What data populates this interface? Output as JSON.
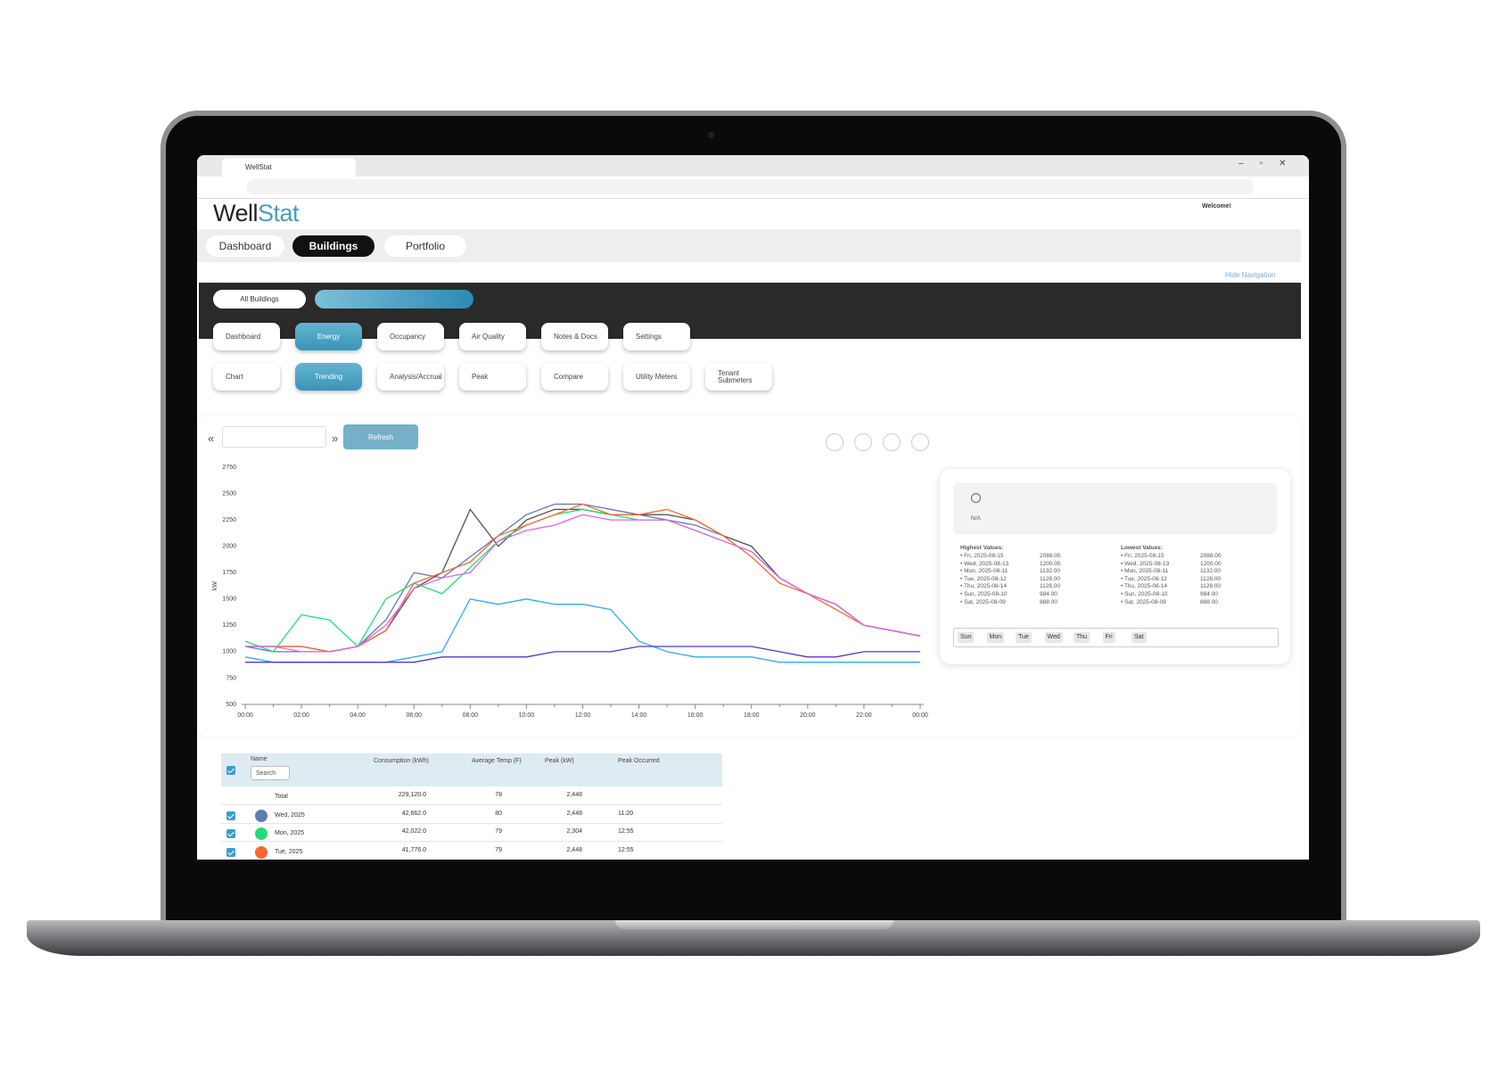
{
  "browser": {
    "tab_title": "WellStat"
  },
  "header": {
    "logo_well": "Well",
    "logo_stat": "Stat",
    "welcome": "Welcome!",
    "nav": [
      "Dashboard",
      "Buildings",
      "Portfolio"
    ],
    "hide_navigation": "Hide Navigation"
  },
  "building_bar": {
    "all_buildings": "All Buildings"
  },
  "menu": {
    "row1": [
      "Dashboard",
      "Energy",
      "Occupancy",
      "Air Quality",
      "Notes & Docs",
      "Settings"
    ],
    "row2": [
      "Chart",
      "Trending",
      "Analysis/Accrual",
      "Peak",
      "Compare",
      "Utility Meters",
      "Tenant Submeters"
    ]
  },
  "controls": {
    "prev": "«",
    "next": "»",
    "refresh": "Refresh"
  },
  "chart_data": {
    "type": "line",
    "y_label": "kW",
    "categories": [
      "00:00",
      null,
      "02:00",
      null,
      "04:00",
      null,
      "06:00",
      null,
      "08:00",
      null,
      "10:00",
      null,
      "12:00",
      null,
      "14:00",
      null,
      "16:00",
      null,
      "18:00",
      null,
      "20:00",
      null,
      "22:00",
      null,
      "00:00"
    ],
    "ylim": [
      500,
      2750
    ],
    "yticks": [
      500,
      750,
      1000,
      1250,
      1500,
      1750,
      2000,
      2250,
      2500,
      2750
    ],
    "grid": false,
    "series": [
      {
        "color": "#5f7bb5",
        "values": [
          1050,
          1000,
          1000,
          1000,
          1050,
          1300,
          1750,
          1700,
          1900,
          2100,
          2300,
          2400,
          2400,
          2350,
          2300,
          2250,
          2200,
          2100,
          2000,
          1700,
          1550,
          1450,
          1250,
          1200,
          1150
        ]
      },
      {
        "color": "#555555",
        "values": [
          1050,
          1050,
          1050,
          1000,
          1050,
          1200,
          1600,
          1750,
          2350,
          2000,
          2250,
          2350,
          2350,
          2300,
          2300,
          2300,
          2250,
          2100,
          2000,
          1700,
          1550,
          1450,
          1250,
          1200,
          1150
        ]
      },
      {
        "color": "#22dd77",
        "values": [
          1100,
          1000,
          1350,
          1300,
          1050,
          1500,
          1650,
          1550,
          1800,
          2050,
          2200,
          2300,
          2350,
          2300,
          2250,
          2250,
          2150,
          2050,
          1950,
          1700,
          1550,
          1450,
          1250,
          1200,
          1150
        ]
      },
      {
        "color": "#ff6633",
        "values": [
          1050,
          1050,
          1050,
          1000,
          1050,
          1200,
          1650,
          1750,
          1850,
          2100,
          2200,
          2300,
          2400,
          2300,
          2300,
          2350,
          2250,
          2100,
          1900,
          1650,
          1550,
          1400,
          1250,
          1200,
          1150
        ]
      },
      {
        "color": "#dd66ee",
        "values": [
          1050,
          1050,
          1000,
          1000,
          1050,
          1250,
          1600,
          1700,
          1750,
          2050,
          2150,
          2200,
          2300,
          2250,
          2250,
          2250,
          2150,
          2050,
          1950,
          1700,
          1550,
          1450,
          1250,
          1200,
          1150
        ]
      },
      {
        "color": "#33aaee",
        "values": [
          950,
          900,
          900,
          900,
          900,
          900,
          950,
          1000,
          1500,
          1450,
          1500,
          1450,
          1450,
          1400,
          1100,
          1000,
          950,
          950,
          950,
          900,
          900,
          900,
          900,
          900,
          900
        ]
      },
      {
        "color": "#5533cc",
        "values": [
          900,
          900,
          900,
          900,
          900,
          900,
          900,
          950,
          950,
          950,
          950,
          1000,
          1000,
          1000,
          1050,
          1050,
          1050,
          1050,
          1050,
          1000,
          950,
          950,
          1000,
          1000,
          1000
        ]
      }
    ]
  },
  "summary": {
    "status": "N/A",
    "highest_title": "Highest Values:",
    "lowest_title": "Lowest Values:",
    "highest": [
      {
        "label": "• Fri, 2025-08-15",
        "value": "2088.00"
      },
      {
        "label": "• Wed, 2025-08-13",
        "value": "1200.00"
      },
      {
        "label": "• Mon, 2025-08-11",
        "value": "1132.00"
      },
      {
        "label": "• Tue, 2025-08-12",
        "value": "1128.00"
      },
      {
        "label": "• Thu, 2025-08-14",
        "value": "1128.00"
      },
      {
        "label": "• Sun, 2025-08-10",
        "value": "984.00"
      },
      {
        "label": "• Sat, 2025-08-09",
        "value": "888.00"
      }
    ],
    "lowest": [
      {
        "label": "• Fri, 2025-08-15",
        "value": "2088.00"
      },
      {
        "label": "• Wed, 2025-08-13",
        "value": "1200.00"
      },
      {
        "label": "• Mon, 2025-08-11",
        "value": "1132.00"
      },
      {
        "label": "• Tue, 2025-08-12",
        "value": "1128.00"
      },
      {
        "label": "• Thu, 2025-08-14",
        "value": "1128.00"
      },
      {
        "label": "• Sun, 2025-08-10",
        "value": "984.00"
      },
      {
        "label": "• Sat, 2025-08-09",
        "value": "888.00"
      }
    ],
    "days": [
      "Sun",
      "Mon",
      "Tue",
      "Wed",
      "Thu",
      "Fri",
      "Sat"
    ]
  },
  "table": {
    "columns": [
      "Name",
      "Consumption (kWh)",
      "Average Temp (F)",
      "Peak (kW)",
      "Peak Occurred"
    ],
    "search_placeholder": "Search",
    "rows": [
      {
        "name": "Total",
        "consumption": "229,120.0",
        "temp": "78",
        "peak": "2,448"
      },
      {
        "name": "Wed, 2025",
        "color": "#5f7bb5",
        "consumption": "42,662.0",
        "temp": "80",
        "peak": "2,448",
        "occurred": "11:20"
      },
      {
        "name": "Mon, 2025",
        "color": "#22dd77",
        "consumption": "42,022.0",
        "temp": "79",
        "peak": "2,304",
        "occurred": "12:55"
      },
      {
        "name": "Tue, 2025",
        "color": "#ff6633",
        "consumption": "41,776.0",
        "temp": "79",
        "peak": "2,448",
        "occurred": "12:55"
      }
    ]
  }
}
